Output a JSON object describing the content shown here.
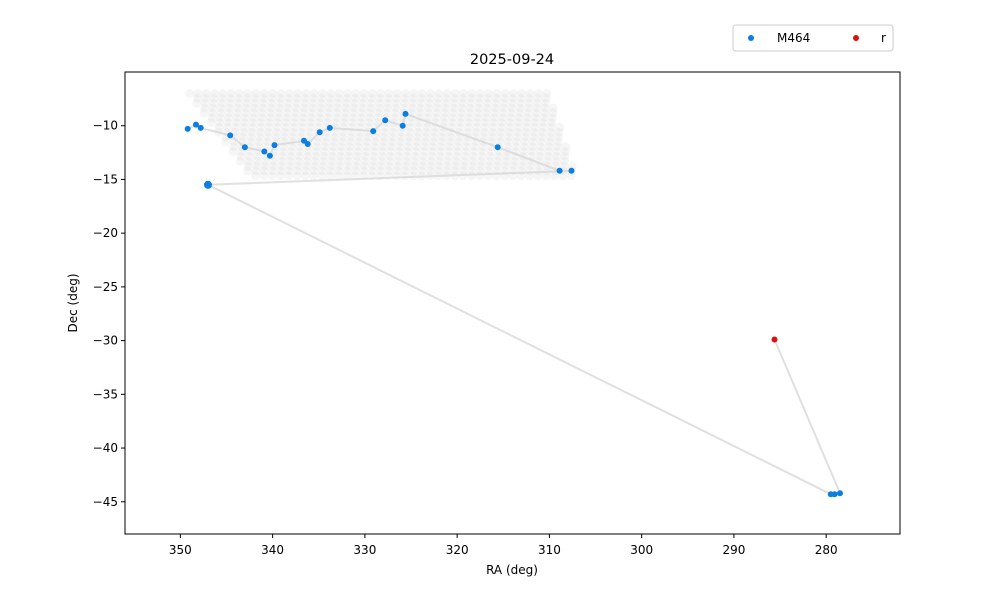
{
  "chart_data": {
    "type": "scatter",
    "title": "2025-09-24",
    "xlabel": "RA (deg)",
    "ylabel": "Dec (deg)",
    "xlim": [
      356,
      272
    ],
    "ylim": [
      -48,
      -5
    ],
    "x_ticks": [
      350,
      340,
      330,
      320,
      310,
      300,
      290,
      280
    ],
    "y_ticks": [
      -10,
      -15,
      -20,
      -25,
      -30,
      -35,
      -40,
      -45
    ],
    "grid": false,
    "legend_position": "above-right",
    "survey_footprint": {
      "color": "#c8c8c8",
      "ra_range_top": [
        349,
        310
      ],
      "ra_range_bottom": [
        342,
        307
      ],
      "dec_range": [
        -15,
        -7
      ]
    },
    "path": {
      "color": "#d6d6d6",
      "points": [
        [
          349.2,
          -10.3
        ],
        [
          348.3,
          -9.9
        ],
        [
          347.8,
          -10.2
        ],
        [
          344.6,
          -10.9
        ],
        [
          343.0,
          -12.0
        ],
        [
          340.9,
          -12.4
        ],
        [
          340.3,
          -12.8
        ],
        [
          339.8,
          -11.8
        ],
        [
          336.6,
          -11.4
        ],
        [
          336.2,
          -11.7
        ],
        [
          334.9,
          -10.6
        ],
        [
          333.8,
          -10.2
        ],
        [
          329.1,
          -10.5
        ],
        [
          327.8,
          -9.5
        ],
        [
          325.9,
          -10.0
        ],
        [
          325.6,
          -8.9
        ],
        [
          315.6,
          -12.0
        ],
        [
          308.9,
          -14.2
        ],
        [
          307.6,
          -14.2
        ],
        [
          347.0,
          -15.5
        ],
        [
          279.5,
          -44.3
        ],
        [
          279.1,
          -44.3
        ],
        [
          278.5,
          -44.2
        ],
        [
          285.6,
          -29.9
        ]
      ]
    },
    "series": [
      {
        "name": "M464",
        "color": "#0a7fe0",
        "points": [
          [
            349.2,
            -10.3
          ],
          [
            348.3,
            -9.9
          ],
          [
            347.8,
            -10.2
          ],
          [
            344.6,
            -10.9
          ],
          [
            343.0,
            -12.0
          ],
          [
            340.9,
            -12.4
          ],
          [
            340.3,
            -12.8
          ],
          [
            339.8,
            -11.8
          ],
          [
            336.6,
            -11.4
          ],
          [
            336.2,
            -11.7
          ],
          [
            334.9,
            -10.6
          ],
          [
            333.8,
            -10.2
          ],
          [
            329.1,
            -10.5
          ],
          [
            327.8,
            -9.5
          ],
          [
            325.9,
            -10.0
          ],
          [
            325.6,
            -8.9
          ],
          [
            315.6,
            -12.0
          ],
          [
            308.9,
            -14.2
          ],
          [
            307.6,
            -14.2
          ],
          [
            347.0,
            -15.5
          ],
          [
            279.5,
            -44.3
          ],
          [
            279.1,
            -44.3
          ],
          [
            278.5,
            -44.2
          ]
        ]
      },
      {
        "name": "r",
        "color": "#e01010",
        "points": [
          [
            285.6,
            -29.9
          ]
        ]
      }
    ]
  }
}
